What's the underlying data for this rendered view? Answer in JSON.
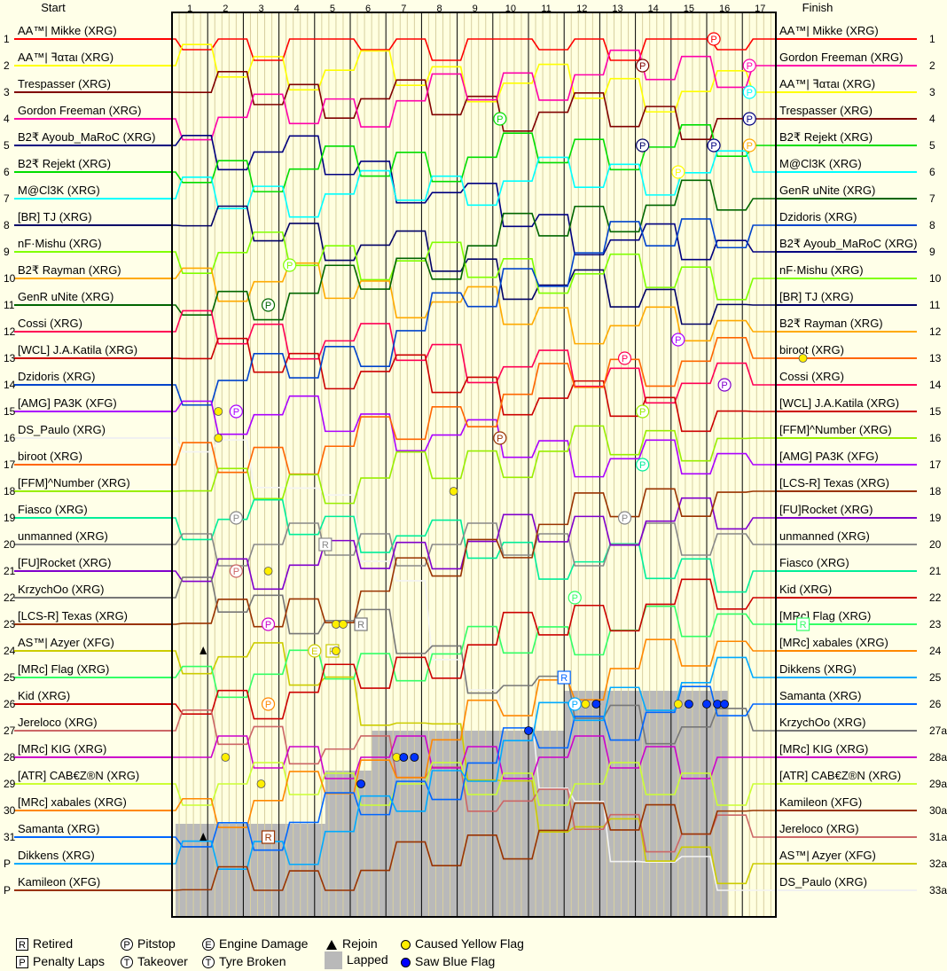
{
  "chart_data": {
    "type": "line",
    "title": "",
    "header_left": "Start",
    "header_right": "Finish",
    "laps": [
      "1",
      "2",
      "3",
      "4",
      "5",
      "6",
      "7",
      "8",
      "9",
      "10",
      "11",
      "12",
      "13",
      "14",
      "15",
      "16",
      "17"
    ],
    "left_positions": [
      "1",
      "2",
      "3",
      "4",
      "5",
      "6",
      "7",
      "8",
      "9",
      "10",
      "11",
      "12",
      "13",
      "14",
      "15",
      "16",
      "17",
      "18",
      "19",
      "20",
      "21",
      "22",
      "23",
      "24",
      "25",
      "26",
      "27",
      "28",
      "29",
      "30",
      "31",
      "P",
      "P"
    ],
    "right_positions": [
      "1",
      "2",
      "3",
      "4",
      "5",
      "6",
      "7",
      "8",
      "9",
      "10",
      "11",
      "12",
      "13",
      "14",
      "15",
      "16",
      "17",
      "18",
      "19",
      "20",
      "21",
      "22",
      "23",
      "24",
      "25",
      "26",
      "27a",
      "28a",
      "29a",
      "30a",
      "31a",
      "32a",
      "33a"
    ],
    "grid": [
      {
        "name": "AA™| Mikke (XRG)",
        "color": "#ff0000"
      },
      {
        "name": "AA™| ꟻατaι (XRG)",
        "color": "#ffff00"
      },
      {
        "name": "Trespasser (XRG)",
        "color": "#800000"
      },
      {
        "name": "Gordon Freeman (XRG)",
        "color": "#ff00aa"
      },
      {
        "name": "B2₹ Ayoub_MaRoC (XRG)",
        "color": "#000080"
      },
      {
        "name": "B2₹ Rejekt (XRG)",
        "color": "#00dd00"
      },
      {
        "name": "M@Cl3K (XRG)",
        "color": "#00ffff"
      },
      {
        "name": "[BR] TJ (XRG)",
        "color": "#000066"
      },
      {
        "name": "nF·Mishu (XRG)",
        "color": "#80ff00"
      },
      {
        "name": "B2₹ Rayman (XRG)",
        "color": "#ffaa00"
      },
      {
        "name": "GenR uNite (XRG)",
        "color": "#006600"
      },
      {
        "name": "Cossi (XRG)",
        "color": "#ff0055"
      },
      {
        "name": "[WCL] J.A.Katila (XRG)",
        "color": "#cc0000"
      },
      {
        "name": "Dzidoris (XRG)",
        "color": "#0044cc"
      },
      {
        "name": "[AMG] PA3K (XFG)",
        "color": "#aa00ff"
      },
      {
        "name": "DS_Paulo (XRG)",
        "color": "#ffffff"
      },
      {
        "name": "biroot (XRG)",
        "color": "#ff6600"
      },
      {
        "name": "[FFM]^Number (XRG)",
        "color": "#99ee00"
      },
      {
        "name": "Fiasco (XRG)",
        "color": "#00ee99"
      },
      {
        "name": "unmanned (XRG)",
        "color": "#888888"
      },
      {
        "name": "[FU]Rocket (XRG)",
        "color": "#8000cc"
      },
      {
        "name": "KrzychOo (XRG)",
        "color": "#777777"
      },
      {
        "name": "[LCS-R] Texas (XRG)",
        "color": "#993300"
      },
      {
        "name": "AS™| Azyer (XFG)",
        "color": "#cccc00"
      },
      {
        "name": "[MRc] Flag (XRG)",
        "color": "#33ff66"
      },
      {
        "name": "Kid (XRG)",
        "color": "#cc0000"
      },
      {
        "name": "Jereloco (XRG)",
        "color": "#cc6666"
      },
      {
        "name": "[MRc] KIG (XRG)",
        "color": "#cc00cc"
      },
      {
        "name": "[ATR] CAB€Z®N (XRG)",
        "color": "#ccff33"
      },
      {
        "name": "[MRc] xabales (XRG)",
        "color": "#ff8800"
      },
      {
        "name": "Samanta (XRG)",
        "color": "#0066ff"
      },
      {
        "name": "Dikkens (XRG)",
        "color": "#00aaff"
      },
      {
        "name": "Kamileon (XFG)",
        "color": "#993300"
      }
    ],
    "finish": [
      "AA™| Mikke (XRG)",
      "Gordon Freeman (XRG)",
      "AA™| ꟻατaι (XRG)",
      "Trespasser (XRG)",
      "B2₹ Rejekt (XRG)",
      "M@Cl3K (XRG)",
      "GenR uNite (XRG)",
      "Dzidoris (XRG)",
      "B2₹ Ayoub_MaRoC (XRG)",
      "nF·Mishu (XRG)",
      "[BR] TJ (XRG)",
      "B2₹ Rayman (XRG)",
      "biroot (XRG)",
      "Cossi (XRG)",
      "[WCL] J.A.Katila (XRG)",
      "[FFM]^Number (XRG)",
      "[AMG] PA3K (XFG)",
      "[LCS-R] Texas (XRG)",
      "[FU]Rocket (XRG)",
      "unmanned (XRG)",
      "Fiasco (XRG)",
      "Kid (XRG)",
      "[MRc] Flag (XRG)",
      "[MRc] xabales (XRG)",
      "Dikkens (XRG)",
      "Samanta (XRG)",
      "KrzychOo (XRG)",
      "[MRc] KIG (XRG)",
      "[ATR] CAB€Z®N (XRG)",
      "Kamileon (XFG)",
      "Jereloco (XRG)",
      "AS™| Azyer (XFG)",
      "DS_Paulo (XRG)"
    ],
    "events": [
      {
        "driver": "AA™| Mikke (XRG)",
        "lap": 15.2,
        "pos": 1,
        "mark": "P"
      },
      {
        "driver": "Trespasser (XRG)",
        "lap": 13.2,
        "pos": 2,
        "mark": "P"
      },
      {
        "driver": "Gordon Freeman (XRG)",
        "lap": 16.2,
        "pos": 2,
        "mark": "P"
      },
      {
        "driver": "M@Cl3K (XRG)",
        "lap": 16.2,
        "pos": 3,
        "mark": "P"
      },
      {
        "driver": "B2₹ Rejekt (XRG)",
        "lap": 9.2,
        "pos": 4,
        "mark": "P"
      },
      {
        "driver": "B2₹ Ayoub_MaRoC (XRG)",
        "lap": 16.2,
        "pos": 4,
        "mark": "P"
      },
      {
        "driver": "[BR] TJ (XRG)",
        "lap": 13.2,
        "pos": 5,
        "mark": "P"
      },
      {
        "driver": "B2₹ Ayoub_MaRoC (XRG)",
        "lap": 15.2,
        "pos": 5,
        "mark": "P"
      },
      {
        "driver": "B2₹ Rayman (XRG)",
        "lap": 16.2,
        "pos": 5,
        "mark": "P"
      },
      {
        "driver": "AA™| ꟻατaι (XRG)",
        "lap": 14.2,
        "pos": 6,
        "mark": "P"
      },
      {
        "driver": "nF·Mishu (XRG)",
        "lap": 3.3,
        "pos": 9.5,
        "mark": "P"
      },
      {
        "driver": "GenR uNite (XRG)",
        "lap": 2.7,
        "pos": 11,
        "mark": "P"
      },
      {
        "driver": "[AMG] PA3K (XFG)",
        "lap": 14.2,
        "pos": 12.3,
        "mark": "P"
      },
      {
        "driver": "Cossi (XRG)",
        "lap": 12.7,
        "pos": 13,
        "mark": "P"
      },
      {
        "driver": "[FU]Rocket (XRG)",
        "lap": 15.5,
        "pos": 14,
        "mark": "P"
      },
      {
        "driver": "[AMG] PA3K (XFG)",
        "lap": 1.8,
        "pos": 15,
        "mark": "P"
      },
      {
        "driver": "[FFM]^Number (XRG)",
        "lap": 13.2,
        "pos": 15,
        "mark": "P"
      },
      {
        "driver": "[LCS-R] Texas (XRG)",
        "lap": 9.2,
        "pos": 16,
        "mark": "P"
      },
      {
        "driver": "Fiasco (XRG)",
        "lap": 13.2,
        "pos": 17,
        "mark": "P"
      },
      {
        "driver": "unmanned (XRG)",
        "lap": 1.8,
        "pos": 19,
        "mark": "P"
      },
      {
        "driver": "unmanned (XRG)",
        "lap": 12.7,
        "pos": 19,
        "mark": "P"
      },
      {
        "driver": "Jereloco (XRG)",
        "lap": 1.8,
        "pos": 21,
        "mark": "P"
      },
      {
        "driver": "[MRc] Flag (XRG)",
        "lap": 11.3,
        "pos": 22,
        "mark": "P"
      },
      {
        "driver": "[MRc] KIG (XRG)",
        "lap": 2.7,
        "pos": 23,
        "mark": "P"
      },
      {
        "driver": "[MRc] xabales (XRG)",
        "lap": 2.7,
        "pos": 26,
        "mark": "P"
      },
      {
        "driver": "Dikkens (XRG)",
        "lap": 11.3,
        "pos": 26,
        "mark": "P"
      },
      {
        "driver": "unmanned (XRG)",
        "lap": 4.3,
        "pos": 20,
        "mark": "R"
      },
      {
        "driver": "KrzychOo (XRG)",
        "lap": 5.3,
        "pos": 23,
        "mark": "R"
      },
      {
        "driver": "AS™| Azyer (XFG)",
        "lap": 4.5,
        "pos": 24,
        "mark": "R"
      },
      {
        "driver": "Samanta (XRG)",
        "lap": 11.0,
        "pos": 25,
        "mark": "R"
      },
      {
        "driver": "Kamileon (XFG)",
        "lap": 2.7,
        "pos": 31,
        "mark": "R"
      },
      {
        "driver": "[MRc] Flag (XRG)",
        "lap": 17.7,
        "pos": 23,
        "mark": "R"
      },
      {
        "driver": "AS™| Azyer (XFG)",
        "lap": 4.0,
        "pos": 24,
        "mark": "E"
      }
    ],
    "yellow_flags": [
      {
        "lap": 1.3,
        "pos": 15
      },
      {
        "lap": 1.3,
        "pos": 16
      },
      {
        "lap": 7.9,
        "pos": 18
      },
      {
        "lap": 2.7,
        "pos": 21
      },
      {
        "lap": 4.6,
        "pos": 23
      },
      {
        "lap": 4.8,
        "pos": 23
      },
      {
        "lap": 4.6,
        "pos": 24
      },
      {
        "lap": 1.5,
        "pos": 28
      },
      {
        "lap": 2.5,
        "pos": 29
      },
      {
        "lap": 6.3,
        "pos": 28
      },
      {
        "lap": 11.6,
        "pos": 26
      },
      {
        "lap": 14.2,
        "pos": 26
      },
      {
        "lap": 17.7,
        "pos": 13
      }
    ],
    "blue_flags": [
      {
        "lap": 5.3,
        "pos": 29
      },
      {
        "lap": 6.5,
        "pos": 28
      },
      {
        "lap": 6.8,
        "pos": 28
      },
      {
        "lap": 10.0,
        "pos": 27
      },
      {
        "lap": 11.9,
        "pos": 26
      },
      {
        "lap": 14.5,
        "pos": 26
      },
      {
        "lap": 15.0,
        "pos": 26
      },
      {
        "lap": 15.3,
        "pos": 26
      },
      {
        "lap": 15.5,
        "pos": 26
      }
    ],
    "rejoin_markers": [
      {
        "lap": 0.95,
        "pos": 24
      },
      {
        "lap": 0.95,
        "pos": 31
      }
    ],
    "lapped_region": [
      {
        "from_lap": 0.1,
        "to_lap": 4.3,
        "from_pos": 30.5
      },
      {
        "from_lap": 4.3,
        "to_lap": 5.6,
        "from_pos": 28.5
      },
      {
        "from_lap": 5.6,
        "to_lap": 11.0,
        "from_pos": 27
      },
      {
        "from_lap": 11.0,
        "to_lap": 15.6,
        "from_pos": 25.5
      }
    ],
    "legend": [
      {
        "icon": "retired-icon",
        "label": "Retired"
      },
      {
        "icon": "penalty-laps-icon",
        "label": "Penalty Laps"
      },
      {
        "icon": "pitstop-icon",
        "label": "Pitstop"
      },
      {
        "icon": "takeover-icon",
        "label": "Takeover"
      },
      {
        "icon": "engine-damage-icon",
        "label": "Engine Damage"
      },
      {
        "icon": "tyre-broken-icon",
        "label": "Tyre Broken"
      },
      {
        "icon": "rejoin-icon",
        "label": "Rejoin"
      },
      {
        "icon": "lapped-icon",
        "label": "Lapped"
      },
      {
        "icon": "yellow-flag-icon",
        "label": "Caused Yellow Flag"
      },
      {
        "icon": "blue-flag-icon",
        "label": "Saw Blue Flag"
      }
    ],
    "legend_letters": {
      "retired": "R",
      "penalty": "P",
      "pitstop": "P",
      "takeover": "T",
      "engine": "E",
      "tyre": "T"
    }
  }
}
